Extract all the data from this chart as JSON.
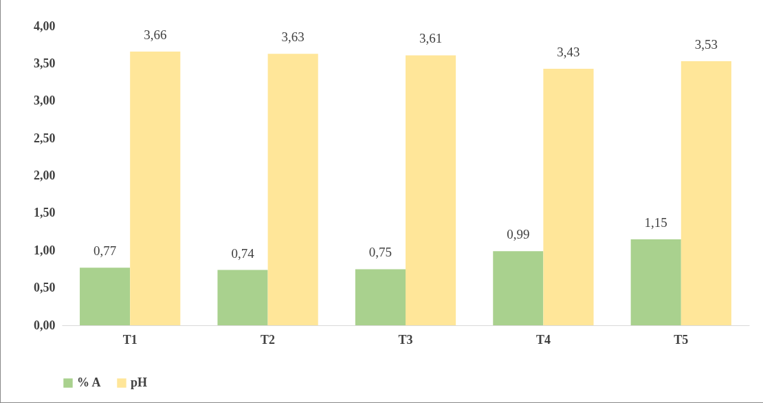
{
  "chart_data": {
    "type": "bar",
    "categories": [
      "T1",
      "T2",
      "T3",
      "T4",
      "T5"
    ],
    "series": [
      {
        "name": "% A",
        "color": "#a9d18e",
        "values": [
          0.77,
          0.74,
          0.75,
          0.99,
          1.15
        ],
        "value_labels": [
          "0,77",
          "0,74",
          "0,75",
          "0,99",
          "1,15"
        ]
      },
      {
        "name": "pH",
        "color": "#ffe699",
        "values": [
          3.66,
          3.63,
          3.61,
          3.43,
          3.53
        ],
        "value_labels": [
          "3,66",
          "3,63",
          "3,61",
          "3,43",
          "3,53"
        ]
      }
    ],
    "ylim": [
      0,
      4
    ],
    "yticks": [
      {
        "value": 0,
        "label": "0,00"
      },
      {
        "value": 0.5,
        "label": "0,50"
      },
      {
        "value": 1,
        "label": "1,00"
      },
      {
        "value": 1.5,
        "label": "1,50"
      },
      {
        "value": 2,
        "label": "2,00"
      },
      {
        "value": 2.5,
        "label": "2,50"
      },
      {
        "value": 3,
        "label": "3,00"
      },
      {
        "value": 3.5,
        "label": "3,50"
      },
      {
        "value": 4,
        "label": "4,00"
      }
    ],
    "legend": "bottom"
  }
}
